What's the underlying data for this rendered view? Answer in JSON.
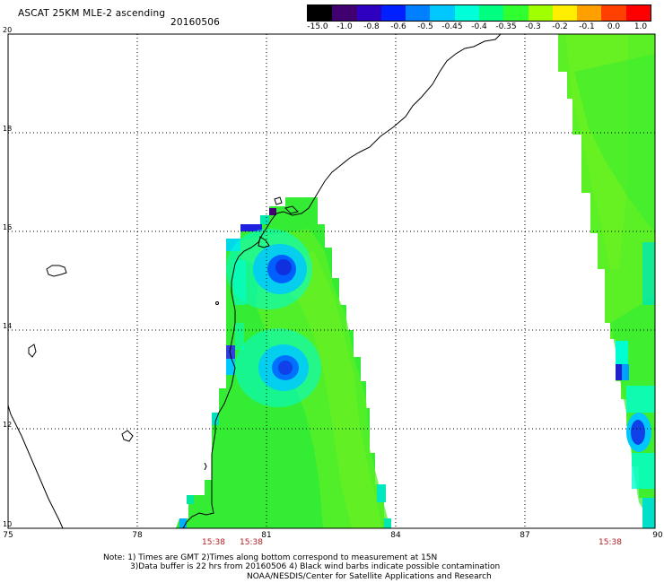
{
  "header": {
    "title": "ASCAT 25KM MLE-2 ascending",
    "date": "20160506"
  },
  "colorbar": {
    "labels": [
      "-15.0",
      "-1.0",
      "-0.8",
      "-0.6",
      "-0.5",
      "-0.45",
      "-0.4",
      "-0.35",
      "-0.3",
      "-0.2",
      "-0.1",
      "0.0",
      "1.0"
    ],
    "colors": [
      "#000000",
      "#400070",
      "#3000c0",
      "#0020ff",
      "#0080ff",
      "#00c8ff",
      "#00ffd8",
      "#00ff80",
      "#30ff30",
      "#a0ff00",
      "#ffee00",
      "#ffa000",
      "#ff4000",
      "#ff0000"
    ]
  },
  "map": {
    "lon_labels": [
      "75",
      "78",
      "81",
      "84",
      "87",
      "90"
    ],
    "lat_labels": [
      "20",
      "18",
      "16",
      "14",
      "12",
      "10"
    ],
    "lon_range": [
      75,
      90
    ],
    "lat_range": [
      10,
      20
    ],
    "grid": "dotted",
    "pass_times": [
      "15:38",
      "15:38",
      "15:38"
    ]
  },
  "footer": {
    "line1": "Note: 1) Times are GMT 2)Times along bottom correspond to measurement at 15N",
    "line2": "3)Data buffer is 22 hrs from 20160506 4) Black wind barbs indicate possible contamination",
    "line3": "NOAA/NESDIS/Center for Satellite Applications and Research"
  }
}
